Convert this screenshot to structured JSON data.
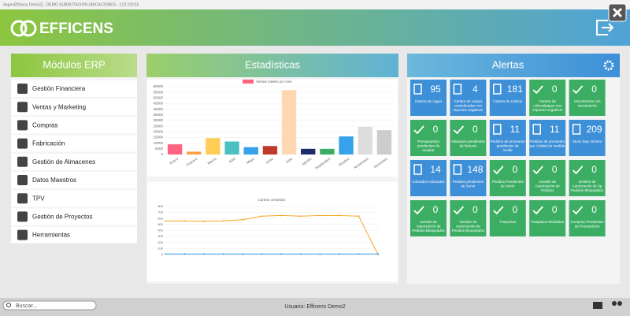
{
  "window": {
    "title": "dogesEfficens Demo2] - DEMO SUBRUTACIÓN UBICACIONES - 12/17/2016"
  },
  "header": {
    "logo": "EFFICENS"
  },
  "modules": {
    "title": "Módulos ERP",
    "items": [
      "Gestión Financiera",
      "Ventas y Marketing",
      "Compras",
      "Fabricación",
      "Gestión de Almacenes",
      "Datos Maestros",
      "TPV",
      "Gestión de Proyectos",
      "Herramientas"
    ]
  },
  "statistics": {
    "title": "Estadísticas"
  },
  "chart_data": [
    {
      "type": "bar",
      "legend": "Ventas totales por mes",
      "categories": [
        "Enero",
        "Febrero",
        "Marzo",
        "Abril",
        "Mayo",
        "Junio",
        "Julio",
        "Agosto",
        "Septiembre",
        "Octubre",
        "Noviembre",
        "Diciembre"
      ],
      "values": [
        9000,
        2500,
        14500,
        11500,
        6500,
        7500,
        57000,
        5000,
        5000,
        16000,
        24500,
        21500
      ],
      "colors": [
        "#ff6384",
        "#ff9f40",
        "#ffcd56",
        "#4bc0c0",
        "#36a2eb",
        "#c0392b",
        "#ffd8b1",
        "#1f2a6b",
        "#3cae64",
        "#36a2eb",
        "#dddddd",
        "#cccccc"
      ],
      "legend_color": "#ff6384",
      "ylim": [
        0,
        60000
      ],
      "yticks": [
        0,
        5000,
        10000,
        15000,
        20000,
        25000,
        30000,
        35000,
        40000,
        45000,
        50000,
        55000,
        60000
      ],
      "grid": true
    },
    {
      "type": "line",
      "title": "Cartera vendedor",
      "categories": [
        null,
        null,
        null,
        null,
        null,
        null,
        null,
        null,
        null,
        null,
        null,
        null
      ],
      "series": [
        {
          "color": "#f5a623",
          "values": [
            560,
            560,
            555,
            560,
            580,
            640,
            650,
            640,
            650,
            650,
            640,
            0
          ]
        },
        {
          "color": "#36a2eb",
          "values": [
            10,
            10,
            10,
            10,
            10,
            10,
            10,
            10,
            10,
            10,
            10,
            10
          ]
        }
      ],
      "ylim": [
        0,
        800
      ],
      "yticks": [
        0,
        100,
        200,
        300,
        400,
        500,
        600,
        700,
        800
      ],
      "grid": true
    }
  ],
  "alerts": {
    "title": "Alertas",
    "tiles": [
      {
        "value": "95",
        "label": "Cartera de cagos",
        "color": "#3d8fd8"
      },
      {
        "value": "4",
        "label": "Cartera de cargos considerados con importes negativos",
        "color": "#3d8fd8"
      },
      {
        "value": "181",
        "label": "Cartera de Cobros",
        "color": "#3d8fd8"
      },
      {
        "value": "0",
        "label": "Cartera de cobros/pagos con importes negativos",
        "color": "#3cae64"
      },
      {
        "value": "0",
        "label": "Vencimientos sin vencimiento",
        "color": "#3cae64"
      },
      {
        "value": "0",
        "label": "Presupuestos pendientes de aceptar",
        "color": "#3cae64"
      },
      {
        "value": "0",
        "label": "Albaranes pendientes de facturar",
        "color": "#3cae64"
      },
      {
        "value": "11",
        "label": "Pedidos de proveedor pendientes de recibir",
        "color": "#3d8fd8"
      },
      {
        "value": "11",
        "label": "Pedidos de proveedor por Unidad de medida",
        "color": "#3d8fd8"
      },
      {
        "value": "209",
        "label": "Stock bajo mínimo",
        "color": "#3d8fd8"
      },
      {
        "value": "14",
        "label": "Cobrados enlazados",
        "color": "#3d8fd8"
      },
      {
        "value": "148",
        "label": "Pedidos pendientes de Servir",
        "color": "#3d8fd8"
      },
      {
        "value": "0",
        "label": "Pedidos Pendientes de Servir",
        "color": "#3cae64"
      },
      {
        "value": "0",
        "label": "Gestión de Autorización de Pedidos",
        "color": "#3cae64"
      },
      {
        "value": "0",
        "label": "Gestión de Autorización de Vp Pedidos Bloqueados",
        "color": "#3cae64"
      },
      {
        "value": "0",
        "label": "Gestión de Autorización de Pedidos Bloqueados",
        "color": "#3cae64"
      },
      {
        "value": "0",
        "label": "Gestión de Autorización de Pedidos Bloqueados",
        "color": "#3cae64"
      },
      {
        "value": "0",
        "label": "Traspasos",
        "color": "#3cae64"
      },
      {
        "value": "0",
        "label": "Traspasos Recibidos",
        "color": "#3cae64"
      },
      {
        "value": "0",
        "label": "Compras Pendientes de Proveedores",
        "color": "#3cae64"
      }
    ]
  },
  "footer": {
    "search": "Buscar...",
    "user": "Usuario: Efficens Demo2"
  }
}
